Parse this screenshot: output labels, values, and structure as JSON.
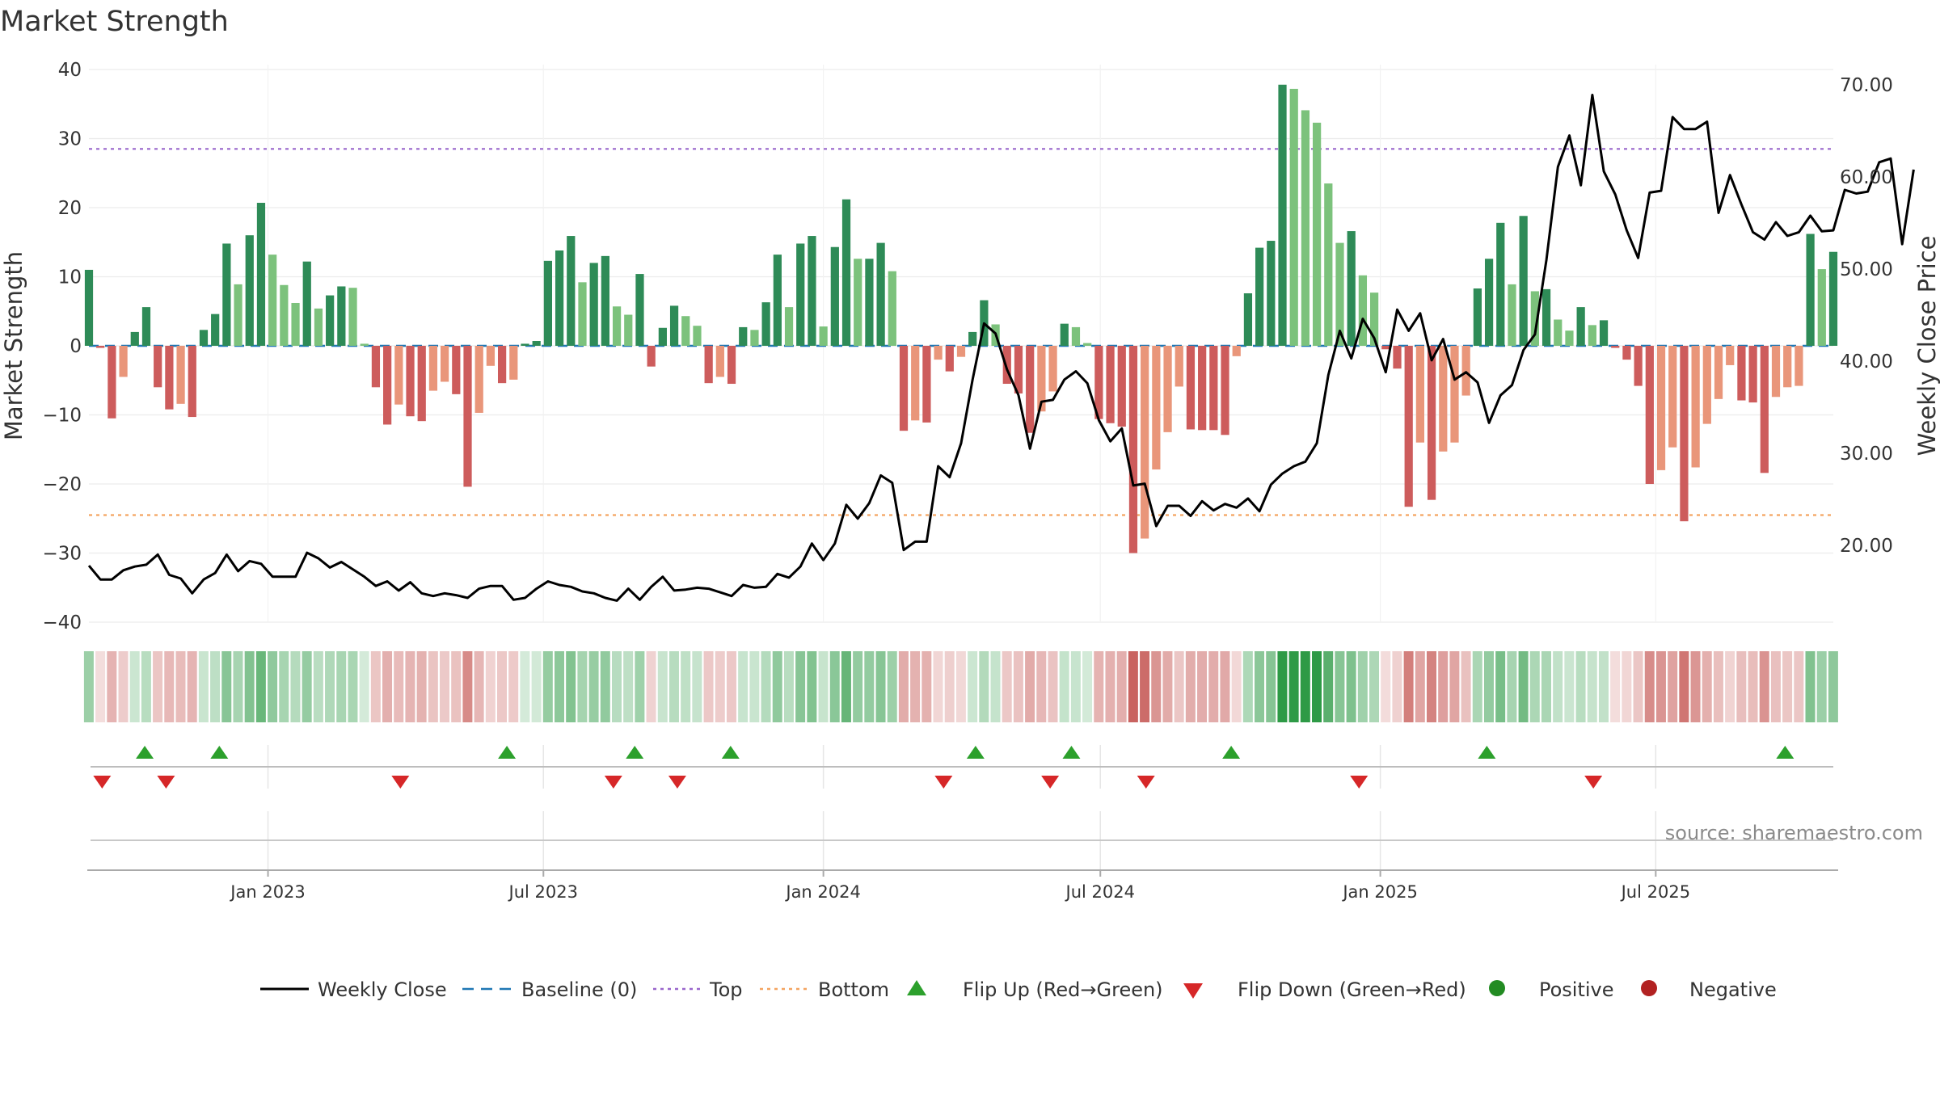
{
  "chart_data": {
    "type": "bar",
    "title": "Market Strength",
    "ylabel_left": "Market Strength",
    "ylabel_right": "Weekly Close Price",
    "ylim_left": [
      -40,
      40
    ],
    "ylim_right": [
      10,
      70
    ],
    "yticks_left": [
      "40",
      "30",
      "20",
      "10",
      "0",
      "−10",
      "−20",
      "−30",
      "−40"
    ],
    "yticks_right": [
      "70.00",
      "60.00",
      "50.00",
      "40.00",
      "30.00",
      "20.00"
    ],
    "xticks": [
      "Jan 2023",
      "Jul 2023",
      "Jan 2024",
      "Jul 2024",
      "Jan 2025",
      "Jul 2025"
    ],
    "x_range": [
      "2022-08-31",
      "2025-10-31"
    ],
    "top_line": 28.5,
    "bottom_line": -24.5,
    "source": "source: sharemaestro.com",
    "weekly_strength": [
      11.0,
      -0.3,
      -10.5,
      -4.5,
      2.0,
      5.6,
      -6.0,
      -9.2,
      -8.4,
      -10.3,
      2.3,
      4.6,
      14.8,
      8.9,
      16.0,
      20.7,
      13.2,
      8.8,
      6.2,
      12.2,
      5.4,
      7.3,
      8.6,
      8.4,
      0.3,
      -6.0,
      -11.4,
      -8.5,
      -10.2,
      -10.9,
      -6.5,
      -5.2,
      -7.0,
      -20.4,
      -9.7,
      -2.9,
      -5.4,
      -4.9,
      0.3,
      0.7,
      12.3,
      13.8,
      15.9,
      9.2,
      12.0,
      13.0,
      5.7,
      4.5,
      10.4,
      -3.0,
      2.6,
      5.8,
      4.3,
      2.9,
      -5.4,
      -4.5,
      -5.5,
      2.7,
      2.3,
      6.3,
      13.2,
      5.6,
      14.8,
      15.9,
      2.8,
      14.3,
      21.2,
      12.6,
      12.6,
      14.9,
      10.8,
      -12.3,
      -10.8,
      -11.1,
      -2.0,
      -3.7,
      -1.6,
      2.0,
      6.6,
      3.1,
      -5.5,
      -6.9,
      -12.6,
      -9.5,
      -6.6,
      3.2,
      2.7,
      0.4,
      -10.6,
      -11.2,
      -11.7,
      -30.0,
      -27.9,
      -17.9,
      -12.5,
      -5.9,
      -12.1,
      -12.2,
      -12.2,
      -12.9,
      -1.5,
      7.6,
      14.2,
      15.2,
      37.8,
      37.2,
      34.1,
      32.3,
      23.5,
      14.9,
      16.6,
      10.2,
      7.7,
      -0.5,
      -3.3,
      -23.3,
      -14.0,
      -22.3,
      -15.3,
      -14.0,
      -7.2,
      8.3,
      12.6,
      17.8,
      8.9,
      18.8,
      7.9,
      8.2,
      3.8,
      2.2,
      5.6,
      3.0,
      3.7,
      -0.3,
      -2.0,
      -5.8,
      -20.0,
      -18.0,
      -14.7,
      -25.4,
      -17.6,
      -11.3,
      -7.7,
      -2.8,
      -7.9,
      -8.2,
      -18.4,
      -7.4,
      -6.0,
      -5.8,
      16.2,
      11.1,
      13.6
    ],
    "weekly_close": [
      17.8,
      16.3,
      16.3,
      17.3,
      17.7,
      17.9,
      19.0,
      16.8,
      16.4,
      14.8,
      16.3,
      17.0,
      19.0,
      17.2,
      18.3,
      18.0,
      16.6,
      16.6,
      16.6,
      19.2,
      18.6,
      17.6,
      18.2,
      17.4,
      16.6,
      15.6,
      16.1,
      15.1,
      16.0,
      14.8,
      14.5,
      14.8,
      14.6,
      14.3,
      15.3,
      15.6,
      15.6,
      14.1,
      14.3,
      15.3,
      16.1,
      15.7,
      15.5,
      15.0,
      14.8,
      14.3,
      14.0,
      15.3,
      14.1,
      15.5,
      16.6,
      15.1,
      15.2,
      15.4,
      15.3,
      14.9,
      14.5,
      15.7,
      15.4,
      15.5,
      16.9,
      16.5,
      17.7,
      20.2,
      18.4,
      20.2,
      24.4,
      22.9,
      24.6,
      27.6,
      26.8,
      19.5,
      20.4,
      20.4,
      28.6,
      27.4,
      31.1,
      38.0,
      44.1,
      43.0,
      39.1,
      36.3,
      30.5,
      35.6,
      35.8,
      38.0,
      38.9,
      37.6,
      33.6,
      31.3,
      32.7,
      26.5,
      26.7,
      22.1,
      24.3,
      24.3,
      23.2,
      24.8,
      23.8,
      24.5,
      24.1,
      25.1,
      23.7,
      26.6,
      27.8,
      28.6,
      29.1,
      31.1,
      38.5,
      43.3,
      40.3,
      44.6,
      42.5,
      38.8,
      45.6,
      43.3,
      45.2,
      40.1,
      42.4,
      38.0,
      38.8,
      37.7,
      33.3,
      36.3,
      37.4,
      41.2,
      42.9,
      51.0,
      61.1,
      64.5,
      59.1,
      68.9,
      60.6,
      58.1,
      54.2,
      51.2,
      58.3,
      58.5,
      66.5,
      65.2,
      65.2,
      66.0,
      56.1,
      60.2,
      57.0,
      54.0,
      53.2,
      55.1,
      53.6,
      54.0,
      55.8,
      54.1,
      54.2,
      58.6,
      58.2,
      58.4,
      61.6,
      62.0,
      52.7,
      60.8
    ],
    "flip_up_dates": [
      "2022-10-12",
      "2022-11-30",
      "2023-06-07",
      "2023-08-30",
      "2023-11-01",
      "2024-04-10",
      "2024-06-12",
      "2024-09-25",
      "2025-03-12",
      "2025-09-24"
    ],
    "flip_down_dates": [
      "2022-09-14",
      "2022-10-26",
      "2023-03-29",
      "2023-08-16",
      "2023-09-27",
      "2024-03-20",
      "2024-05-29",
      "2024-07-31",
      "2024-12-18",
      "2025-05-21"
    ],
    "legend": [
      "Weekly Close",
      "Baseline (0)",
      "Top",
      "Bottom",
      "Flip Up (Red→Green)",
      "Flip Down (Green→Red)",
      "Positive",
      "Negative"
    ],
    "colors": {
      "pos_strong": "#2e8b57",
      "pos_light": "#7cc27c",
      "neg_strong": "#cd5c5c",
      "neg_light": "#e9967a",
      "line": "#000000",
      "baseline": "#1f77b4",
      "top": "#9966cc",
      "bottom": "#f4a460",
      "flip_up": "#2ca02c",
      "flip_down": "#d62728",
      "positive_dot": "#228b22",
      "negative_dot": "#b22222"
    }
  }
}
